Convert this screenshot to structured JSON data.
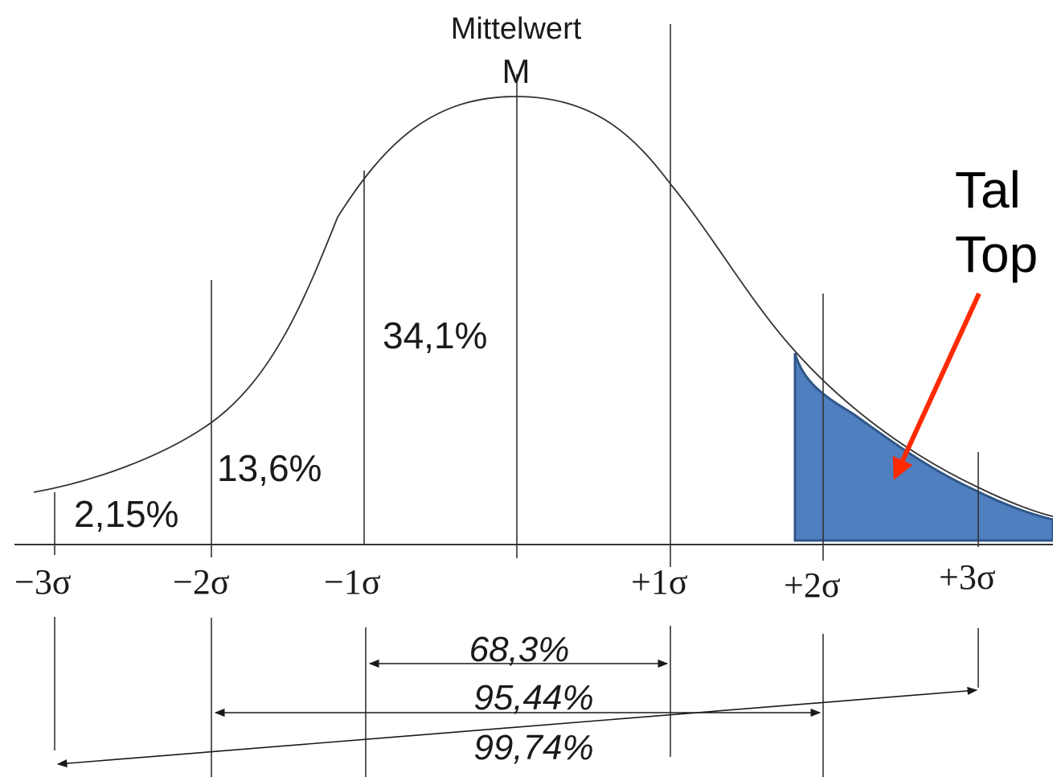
{
  "diagram": {
    "mean_label": "Mittelwert",
    "mean_symbol": "M",
    "sigma_labels": [
      "−3σ",
      "−2σ",
      "−1σ",
      "+1σ",
      "+2σ",
      "+3σ"
    ],
    "region_percents": {
      "center": "34,1%",
      "second": "13,6%",
      "tail": "2,15%"
    },
    "range_percents": {
      "one_sigma": "68,3%",
      "two_sigma": "95,44%",
      "three_sigma": "99,74%"
    },
    "annotation": {
      "line1": "Tal",
      "line2": "Top"
    },
    "colors": {
      "curve": "#333333",
      "shaded_tail": "#4f7fbf",
      "shaded_tail_stroke": "#2e5688",
      "arrow": "#ff2a00"
    }
  }
}
